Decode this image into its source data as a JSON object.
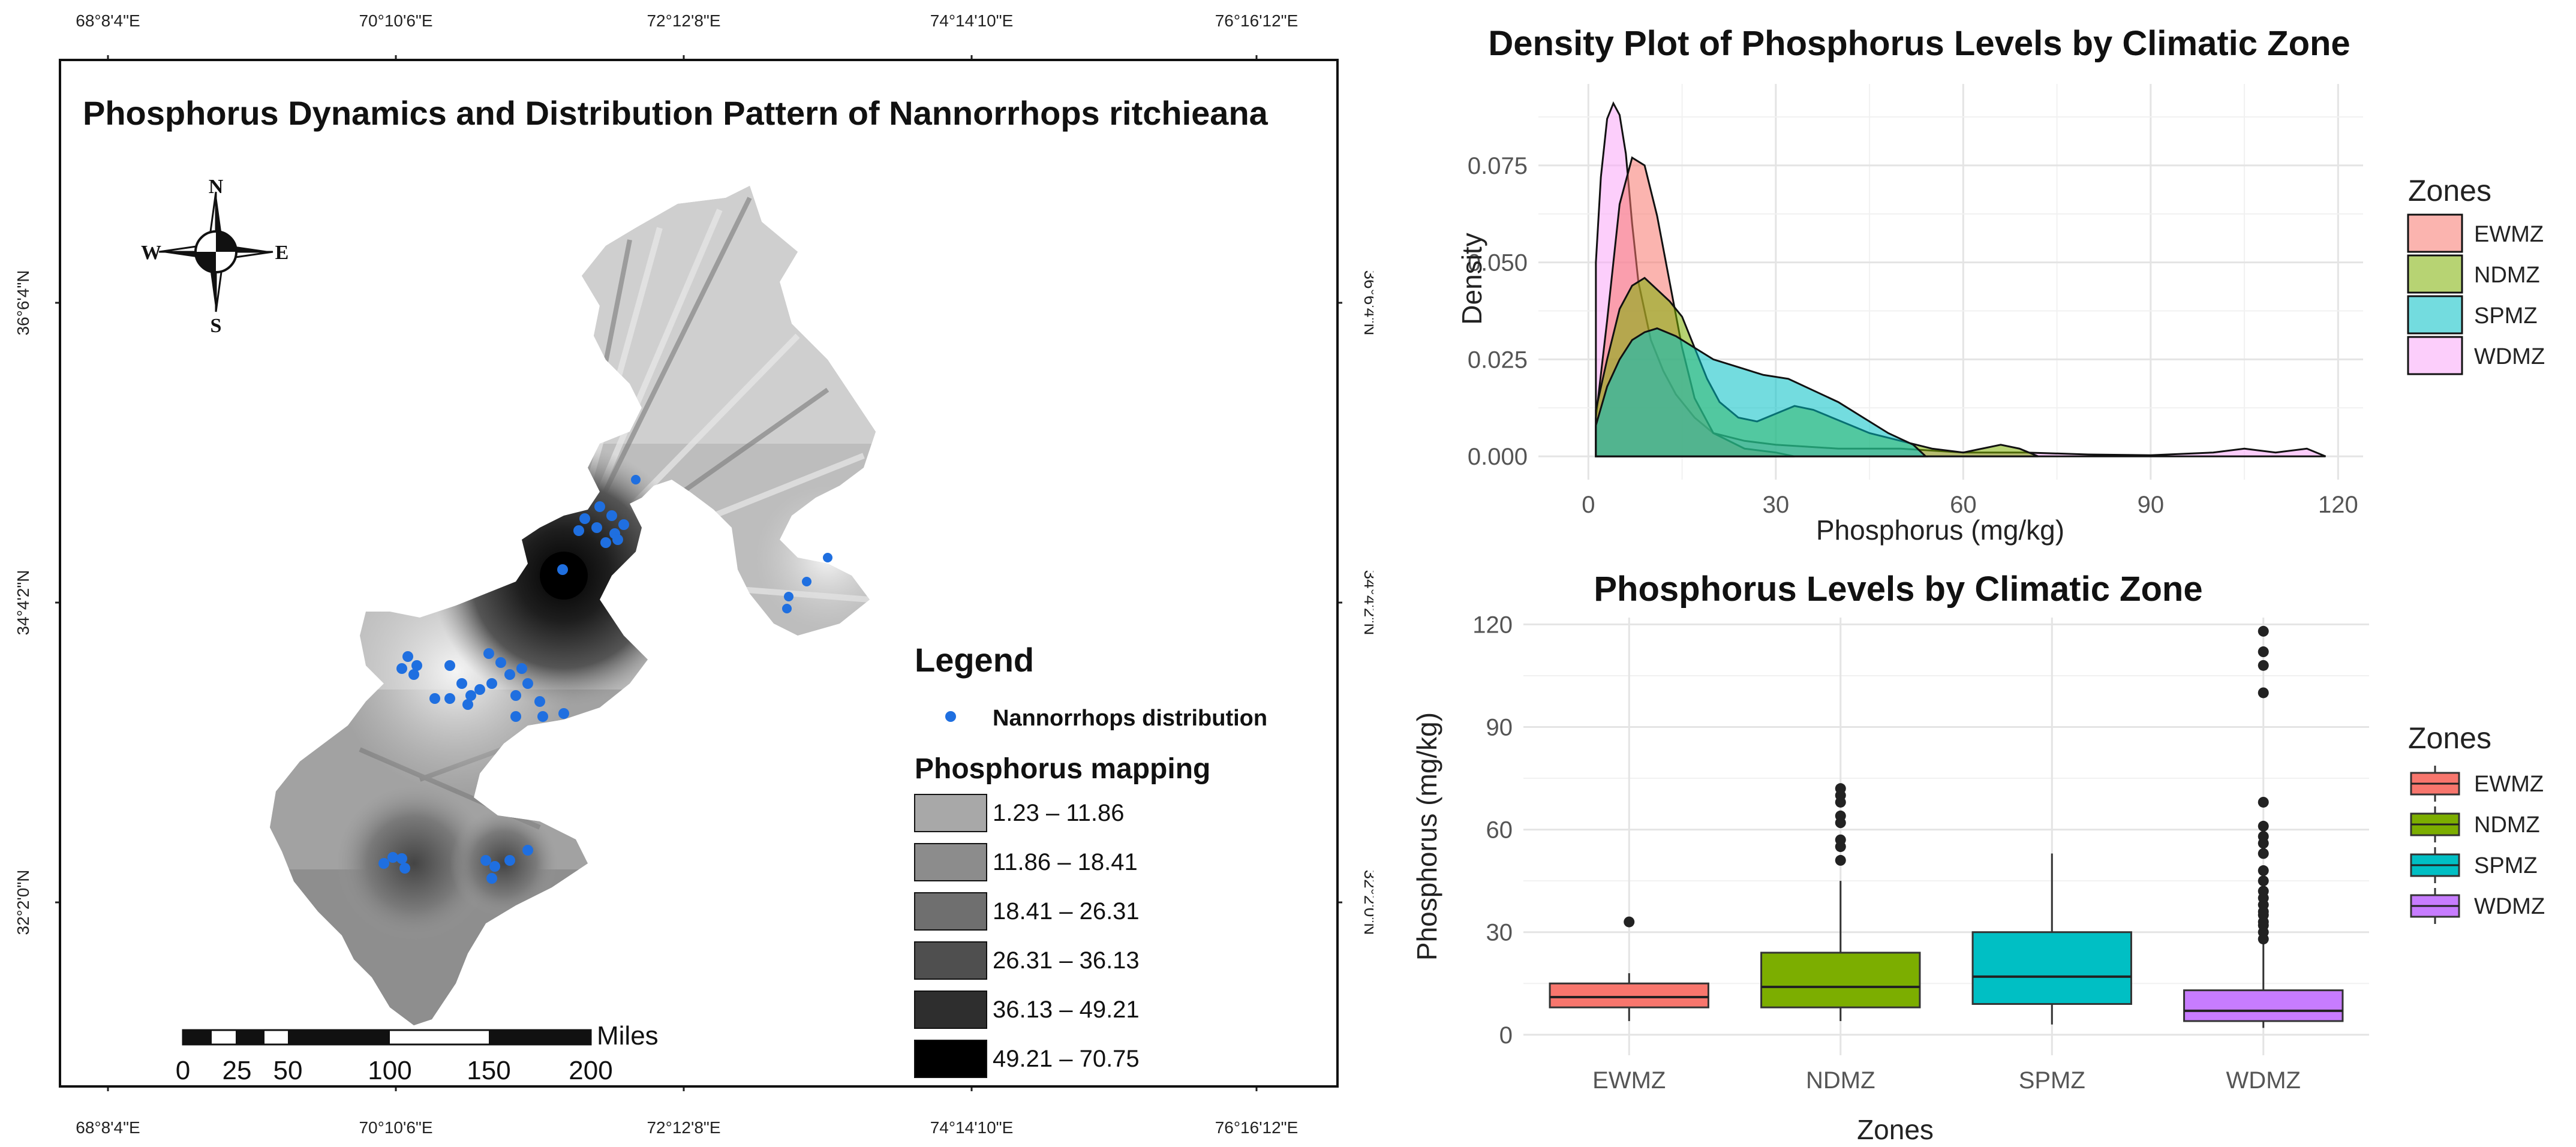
{
  "map": {
    "title": "Phosphorus Dynamics and Distribution Pattern of Nannorrhops ritchieana",
    "top_coords": [
      "68°8'4\"E",
      "70°10'6\"E",
      "72°12'8\"E",
      "74°14'10\"E",
      "76°16'12\"E"
    ],
    "bottom_coords": [
      "68°8'4\"E",
      "70°10'6\"E",
      "72°12'8\"E",
      "74°14'10\"E",
      "76°16'12\"E"
    ],
    "lat_coords": [
      "36°6'4\"N",
      "34°4'2\"N",
      "32°2'0\"N"
    ],
    "compass": {
      "n": "N",
      "s": "S",
      "e": "E",
      "w": "W"
    },
    "legend_title": "Legend",
    "distribution_label": "Nannorrhops distribution",
    "distribution_color": "#1f6fe0",
    "mapping_title": "Phosphorus mapping",
    "classes": [
      {
        "label": "1.23 – 11.86",
        "color": "#a8a8a8"
      },
      {
        "label": "11.86 – 18.41",
        "color": "#8c8c8c"
      },
      {
        "label": "18.41 – 26.31",
        "color": "#6f6f6f"
      },
      {
        "label": "26.31 – 36.13",
        "color": "#4f4f4f"
      },
      {
        "label": "36.13 – 49.21",
        "color": "#2e2e2e"
      },
      {
        "label": "49.21 – 70.75",
        "color": "#000000"
      }
    ],
    "scale_unit": "Miles",
    "scale_labels": [
      "0",
      "25",
      "50",
      "100",
      "150",
      "200"
    ]
  },
  "chart_data": [
    {
      "type": "area",
      "title": "Density Plot of Phosphorus Levels by Climatic Zone",
      "xlabel": "Phosphorus (mg/kg)",
      "ylabel": "Density",
      "xlim": [
        -8,
        124
      ],
      "ylim": [
        -0.006,
        0.096
      ],
      "xticks": [
        0,
        30,
        60,
        90,
        120
      ],
      "yticks": [
        0.0,
        0.025,
        0.05,
        0.075
      ],
      "ytick_labels": [
        "0.000",
        "0.025",
        "0.050",
        "0.075"
      ],
      "legend_title": "Zones",
      "series": [
        {
          "name": "EWMZ",
          "color": "#F8766D",
          "x": [
            1.2,
            3,
            5,
            7,
            9,
            11,
            13,
            15,
            17,
            20,
            25,
            30,
            33
          ],
          "y": [
            0.01,
            0.035,
            0.065,
            0.077,
            0.075,
            0.062,
            0.045,
            0.028,
            0.015,
            0.006,
            0.002,
            0.001,
            0.0
          ]
        },
        {
          "name": "NDMZ",
          "color": "#7CAE00",
          "x": [
            1.2,
            3,
            5,
            7,
            9,
            11,
            13,
            15,
            17,
            19,
            21,
            24,
            27,
            30,
            33,
            36,
            39,
            42,
            45,
            50,
            55,
            60,
            63,
            66,
            69,
            72
          ],
          "y": [
            0.012,
            0.025,
            0.038,
            0.044,
            0.046,
            0.043,
            0.04,
            0.036,
            0.028,
            0.02,
            0.014,
            0.01,
            0.009,
            0.011,
            0.013,
            0.012,
            0.01,
            0.008,
            0.006,
            0.004,
            0.002,
            0.001,
            0.002,
            0.003,
            0.002,
            0.0
          ]
        },
        {
          "name": "SPMZ",
          "color": "#00BFC4",
          "x": [
            1.2,
            3,
            5,
            7,
            9,
            11,
            14,
            17,
            20,
            24,
            28,
            32,
            36,
            40,
            44,
            48,
            52,
            54
          ],
          "y": [
            0.008,
            0.018,
            0.025,
            0.03,
            0.032,
            0.033,
            0.031,
            0.028,
            0.025,
            0.023,
            0.021,
            0.02,
            0.017,
            0.014,
            0.01,
            0.006,
            0.003,
            0.0
          ]
        },
        {
          "name": "WDMZ",
          "color": "#F9A6F7",
          "x": [
            1.2,
            2,
            3,
            4,
            5,
            6,
            7,
            8,
            10,
            12,
            14,
            17,
            20,
            25,
            30,
            40,
            50,
            60,
            70,
            80,
            90,
            100,
            105,
            110,
            115,
            118
          ],
          "y": [
            0.05,
            0.072,
            0.087,
            0.091,
            0.088,
            0.078,
            0.06,
            0.045,
            0.03,
            0.022,
            0.016,
            0.01,
            0.006,
            0.004,
            0.003,
            0.002,
            0.002,
            0.001,
            0.001,
            0.0005,
            0.0003,
            0.001,
            0.002,
            0.001,
            0.002,
            0.0
          ]
        }
      ]
    },
    {
      "type": "box",
      "title": "Phosphorus Levels by Climatic Zone",
      "xlabel": "Zones",
      "ylabel": "Phosphorus (mg/kg)",
      "categories": [
        "EWMZ",
        "NDMZ",
        "SPMZ",
        "WDMZ"
      ],
      "ylim": [
        -6,
        122
      ],
      "yticks": [
        0,
        30,
        60,
        90,
        120
      ],
      "legend_title": "Zones",
      "series": [
        {
          "name": "EWMZ",
          "color": "#F8766D",
          "min": 4,
          "q1": 8,
          "median": 11,
          "q3": 15,
          "max": 18,
          "outliers": [
            33
          ]
        },
        {
          "name": "NDMZ",
          "color": "#7CAE00",
          "min": 4,
          "q1": 8,
          "median": 14,
          "q3": 24,
          "max": 45,
          "outliers": [
            51,
            55,
            57,
            62,
            64,
            68,
            70,
            72
          ]
        },
        {
          "name": "SPMZ",
          "color": "#00BFC4",
          "min": 3,
          "q1": 9,
          "median": 17,
          "q3": 30,
          "max": 53,
          "outliers": []
        },
        {
          "name": "WDMZ",
          "color": "#C77CFF",
          "min": 2,
          "q1": 4,
          "median": 7,
          "q3": 13,
          "max": 27,
          "outliers": [
            28,
            30,
            32,
            33,
            35,
            36,
            38,
            40,
            42,
            45,
            48,
            53,
            56,
            58,
            61,
            68,
            100,
            108,
            112,
            118
          ]
        }
      ]
    }
  ]
}
